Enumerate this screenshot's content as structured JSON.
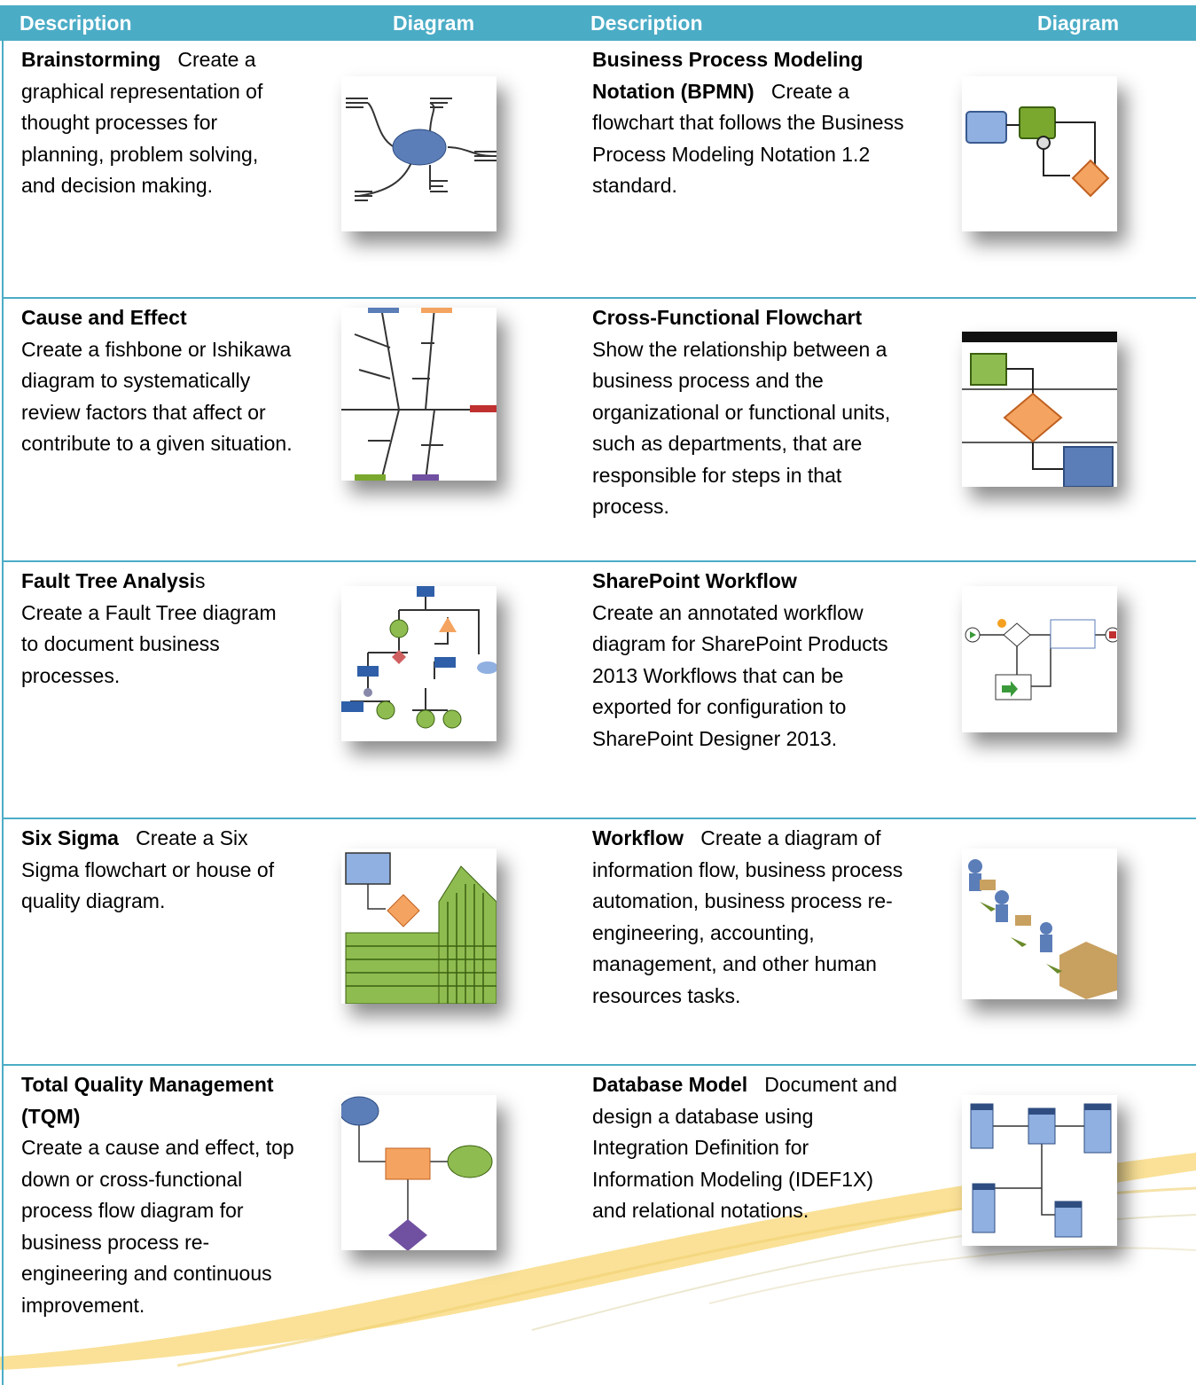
{
  "header": {
    "columns": [
      "Description",
      "Diagram",
      "Description",
      "Diagram"
    ]
  },
  "table": {
    "rows": [
      [
        {
          "title": "Brainstorming",
          "text": "Create a graphical representation of thought processes for planning, problem solving, and decision making."
        },
        {
          "title": "Business Process Modeling Notation (BPMN)",
          "text": "Create a flowchart that follows the Business Process Modeling Notation 1.2 standard."
        }
      ],
      [
        {
          "title": "Cause and Effect",
          "text": "Create a fishbone or Ishikawa diagram to systematically review factors that affect or contribute to a given situation."
        },
        {
          "title": "Cross-Functional Flowchart",
          "text": "Show the relationship between a business process and the organizational or functional units, such as departments, that are responsible for steps in that process."
        }
      ],
      [
        {
          "title": "Fault Tree Analysi",
          "title_tail": "s",
          "text": "Create a Fault Tree diagram to document business processes."
        },
        {
          "title": "SharePoint Workflow",
          "text": "Create an annotated workflow diagram for SharePoint Products 2013 Workflows that can be exported for configuration to SharePoint Designer 2013."
        }
      ],
      [
        {
          "title": "Six Sigma",
          "text": "Create a Six Sigma flowchart or house of quality diagram."
        },
        {
          "title": "Workflow",
          "text": "Create a diagram of information flow, business process automation, business process re-engineering, accounting, management, and other human resources tasks."
        }
      ],
      [
        {
          "title": "Total Quality Management (TQM)",
          "text": "Create a cause and effect, top down or cross-functional process flow diagram for business process re-engineering and continuous improvement."
        },
        {
          "title": "Database Model",
          "text": "Document and design a database using Integration Definition for Information Modeling (IDEF1X) and relational notations."
        }
      ]
    ]
  }
}
